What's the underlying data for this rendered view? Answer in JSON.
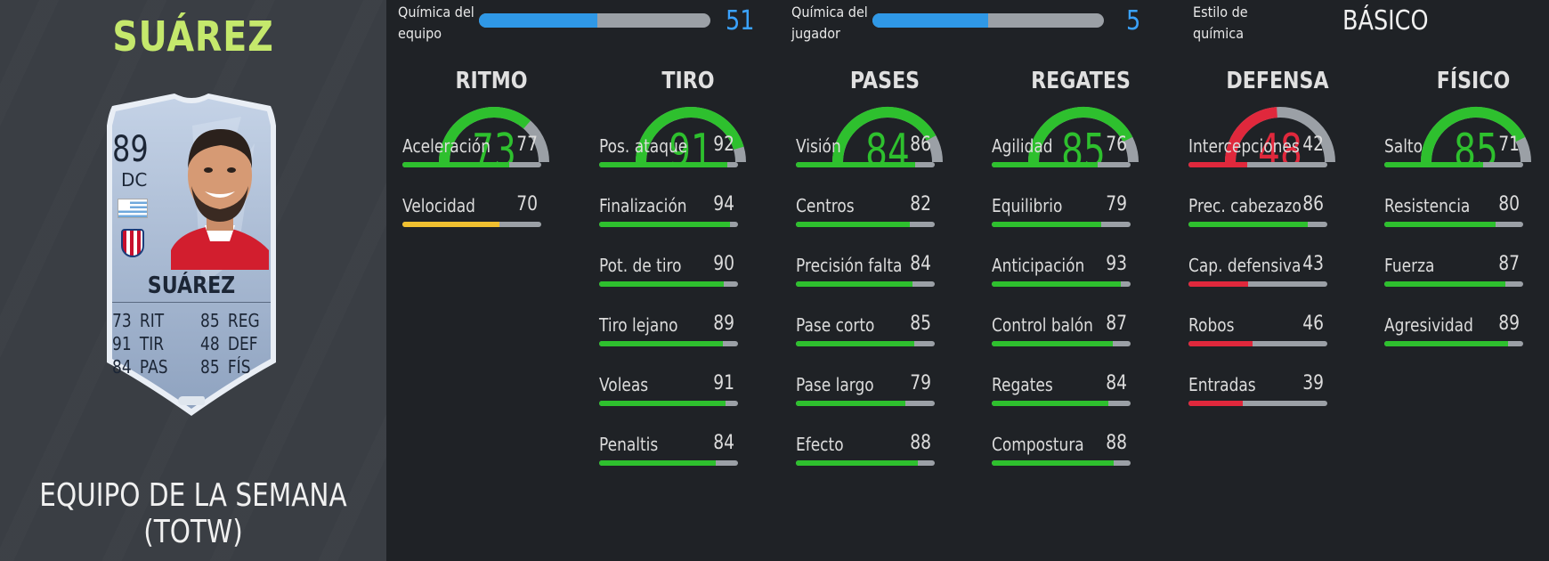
{
  "colors": {
    "green": "#2ec02e",
    "yellow": "#f0c030",
    "red": "#e0283c",
    "grey": "#9ba0a6",
    "blue": "#2f98e6",
    "name_green": "#c5e86c"
  },
  "player": {
    "header_name": "SUÁREZ",
    "card_type": "EQUIPO DE LA SEMANA (TOTW)",
    "card": {
      "rating": "89",
      "position": "DC",
      "name": "SUÁREZ",
      "stats": [
        {
          "value": "73",
          "abbr": "RIT"
        },
        {
          "value": "85",
          "abbr": "REG"
        },
        {
          "value": "91",
          "abbr": "TIR"
        },
        {
          "value": "48",
          "abbr": "DEF"
        },
        {
          "value": "84",
          "abbr": "PAS"
        },
        {
          "value": "85",
          "abbr": "FÍS"
        }
      ]
    }
  },
  "chemistry": {
    "team": {
      "label_line1": "Química del",
      "label_line2": "equipo",
      "value": "51",
      "fill": 0.51
    },
    "player": {
      "label_line1": "Química del",
      "label_line2": "jugador",
      "value": "5",
      "fill": 0.5
    },
    "style": {
      "label_line1": "Estilo de",
      "label_line2": "química",
      "value": "BÁSICO"
    }
  },
  "attributes": [
    {
      "title": "RITMO",
      "value": 73,
      "color": "green",
      "subs": [
        {
          "label": "Aceleración",
          "value": 77,
          "color": "green"
        },
        {
          "label": "Velocidad",
          "value": 70,
          "color": "yellow"
        }
      ]
    },
    {
      "title": "TIRO",
      "value": 91,
      "color": "green",
      "subs": [
        {
          "label": "Pos. ataque",
          "value": 92,
          "color": "green"
        },
        {
          "label": "Finalización",
          "value": 94,
          "color": "green"
        },
        {
          "label": "Pot. de tiro",
          "value": 90,
          "color": "green"
        },
        {
          "label": "Tiro lejano",
          "value": 89,
          "color": "green"
        },
        {
          "label": "Voleas",
          "value": 91,
          "color": "green"
        },
        {
          "label": "Penaltis",
          "value": 84,
          "color": "green"
        }
      ]
    },
    {
      "title": "PASES",
      "value": 84,
      "color": "green",
      "subs": [
        {
          "label": "Visión",
          "value": 86,
          "color": "green"
        },
        {
          "label": "Centros",
          "value": 82,
          "color": "green"
        },
        {
          "label": "Precisión falta",
          "value": 84,
          "color": "green"
        },
        {
          "label": "Pase corto",
          "value": 85,
          "color": "green"
        },
        {
          "label": "Pase largo",
          "value": 79,
          "color": "green"
        },
        {
          "label": "Efecto",
          "value": 88,
          "color": "green"
        }
      ]
    },
    {
      "title": "REGATES",
      "value": 85,
      "color": "green",
      "subs": [
        {
          "label": "Agilidad",
          "value": 76,
          "color": "green"
        },
        {
          "label": "Equilibrio",
          "value": 79,
          "color": "green"
        },
        {
          "label": "Anticipación",
          "value": 93,
          "color": "green"
        },
        {
          "label": "Control balón",
          "value": 87,
          "color": "green"
        },
        {
          "label": "Regates",
          "value": 84,
          "color": "green"
        },
        {
          "label": "Compostura",
          "value": 88,
          "color": "green"
        }
      ]
    },
    {
      "title": "DEFENSA",
      "value": 48,
      "color": "red",
      "subs": [
        {
          "label": "Intercepciones",
          "value": 42,
          "color": "red"
        },
        {
          "label": "Prec. cabezazo",
          "value": 86,
          "color": "green"
        },
        {
          "label": "Cap. defensiva",
          "value": 43,
          "color": "red"
        },
        {
          "label": "Robos",
          "value": 46,
          "color": "red"
        },
        {
          "label": "Entradas",
          "value": 39,
          "color": "red"
        }
      ]
    },
    {
      "title": "FÍSICO",
      "value": 85,
      "color": "green",
      "subs": [
        {
          "label": "Salto",
          "value": 71,
          "color": "green"
        },
        {
          "label": "Resistencia",
          "value": 80,
          "color": "green"
        },
        {
          "label": "Fuerza",
          "value": 87,
          "color": "green"
        },
        {
          "label": "Agresividad",
          "value": 89,
          "color": "green"
        }
      ]
    }
  ]
}
